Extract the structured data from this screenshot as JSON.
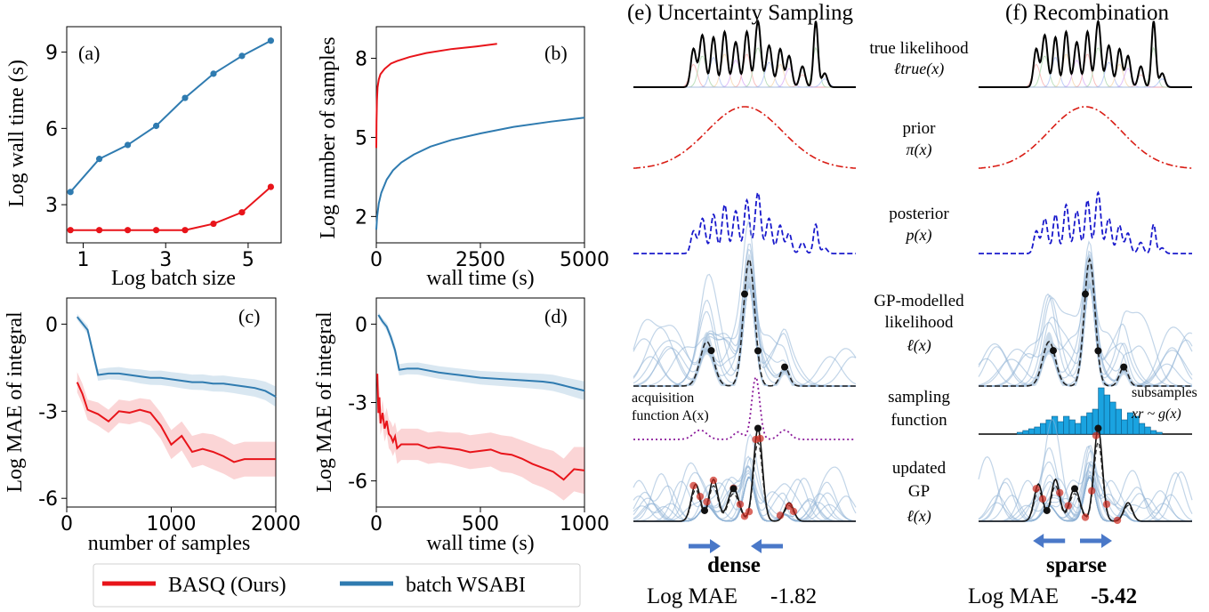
{
  "colors": {
    "basq": "#e8141a",
    "wsabi": "#2f7bb0",
    "prior": "#d91c14",
    "posterior": "#1a1acc",
    "acquisition": "#8b1a9a",
    "gp_light": "#8fb3d6",
    "gp_fill": "#b7cde3",
    "subsample": "#cc2a1e",
    "histogram": "#1aa3e0",
    "arrow": "#4a78c8"
  },
  "legend": {
    "basq": "BASQ (Ours)",
    "wsabi": "batch WSABI"
  },
  "chart_data": [
    {
      "id": "a",
      "type": "line",
      "panel_label": "(a)",
      "xlabel": "Log batch size",
      "ylabel": "Log wall time (s)",
      "xlim": [
        0.6,
        5.8
      ],
      "ylim": [
        1.5,
        10
      ],
      "xticks": [
        1,
        3,
        5
      ],
      "yticks": [
        3,
        6,
        9
      ],
      "x": [
        0.69,
        1.39,
        2.08,
        2.77,
        3.47,
        4.16,
        4.85,
        5.55
      ],
      "series": [
        {
          "name": "BASQ (Ours)",
          "values": [
            2.0,
            2.0,
            2.0,
            2.0,
            2.0,
            2.25,
            2.7,
            3.7
          ]
        },
        {
          "name": "batch WSABI",
          "values": [
            3.5,
            4.8,
            5.35,
            6.1,
            7.2,
            8.15,
            8.85,
            9.45
          ]
        }
      ]
    },
    {
      "id": "b",
      "type": "line",
      "panel_label": "(b)",
      "xlabel": "wall time (s)",
      "ylabel": "Log number of samples",
      "xlim": [
        0,
        5000
      ],
      "ylim": [
        1,
        9.2
      ],
      "xticks": [
        0,
        2500,
        5000
      ],
      "yticks": [
        2,
        5,
        8
      ],
      "series": [
        {
          "name": "BASQ (Ours)",
          "x": [
            0,
            5,
            15,
            30,
            60,
            100,
            200,
            350,
            500,
            800,
            1200,
            1800,
            2400,
            2900
          ],
          "values": [
            4.6,
            5.6,
            6.4,
            6.9,
            7.2,
            7.4,
            7.6,
            7.8,
            7.9,
            8.05,
            8.2,
            8.35,
            8.45,
            8.55
          ]
        },
        {
          "name": "batch WSABI",
          "x": [
            0,
            20,
            60,
            120,
            250,
            400,
            600,
            900,
            1300,
            1800,
            2500,
            3300,
            4200,
            5000
          ],
          "values": [
            1.5,
            2.0,
            2.5,
            2.9,
            3.4,
            3.75,
            4.05,
            4.35,
            4.65,
            4.9,
            5.15,
            5.4,
            5.6,
            5.75
          ]
        }
      ]
    },
    {
      "id": "c",
      "type": "line",
      "panel_label": "(c)",
      "xlabel": "number of samples",
      "ylabel": "Log MAE of integral",
      "xlim": [
        0,
        2000
      ],
      "ylim": [
        -6.3,
        0.9
      ],
      "xticks": [
        0,
        1000,
        2000
      ],
      "yticks": [
        0,
        -3,
        -6
      ],
      "series": [
        {
          "name": "BASQ (Ours)",
          "x": [
            100,
            150,
            200,
            300,
            400,
            500,
            600,
            700,
            800,
            900,
            1000,
            1100,
            1200,
            1300,
            1400,
            1500,
            1600,
            1700,
            1800,
            1900,
            2000
          ],
          "values": [
            -2.0,
            -2.4,
            -2.95,
            -3.1,
            -3.35,
            -3.0,
            -3.05,
            -2.95,
            -3.05,
            -3.5,
            -4.15,
            -3.85,
            -4.4,
            -4.3,
            -4.4,
            -4.55,
            -4.75,
            -4.65,
            -4.65,
            -4.65,
            -4.65
          ],
          "spread": [
            0.35,
            0.35,
            0.35,
            0.4,
            0.4,
            0.4,
            0.4,
            0.4,
            0.45,
            0.45,
            0.5,
            0.5,
            0.55,
            0.55,
            0.6,
            0.6,
            0.6,
            0.6,
            0.6,
            0.6,
            0.6
          ]
        },
        {
          "name": "batch WSABI",
          "x": [
            100,
            200,
            300,
            400,
            500,
            600,
            700,
            800,
            900,
            1000,
            1100,
            1200,
            1300,
            1400,
            1500,
            1600,
            1700,
            1800,
            1900,
            2000
          ],
          "values": [
            0.25,
            -0.2,
            -1.75,
            -1.7,
            -1.7,
            -1.75,
            -1.8,
            -1.85,
            -1.85,
            -1.9,
            -1.95,
            -2.0,
            -2.0,
            -2.05,
            -2.05,
            -2.1,
            -2.15,
            -2.2,
            -2.3,
            -2.5
          ],
          "spread": [
            0.1,
            0.15,
            0.2,
            0.2,
            0.22,
            0.22,
            0.24,
            0.24,
            0.25,
            0.25,
            0.26,
            0.26,
            0.27,
            0.27,
            0.28,
            0.28,
            0.29,
            0.3,
            0.32,
            0.35
          ]
        }
      ]
    },
    {
      "id": "d",
      "type": "line",
      "panel_label": "(d)",
      "xlabel": "wall time (s)",
      "ylabel": "Log MAE of integral",
      "xlim": [
        0,
        1000
      ],
      "ylim": [
        -7,
        1
      ],
      "xticks": [
        0,
        500,
        1000
      ],
      "yticks": [
        0,
        -3,
        -6
      ],
      "series": [
        {
          "name": "BASQ (Ours)",
          "x": [
            5,
            10,
            15,
            20,
            30,
            40,
            50,
            60,
            70,
            80,
            90,
            100,
            120,
            150,
            200,
            250,
            300,
            350,
            400,
            450,
            500,
            550,
            600,
            650,
            700,
            750,
            800,
            850,
            900,
            950,
            1000
          ],
          "values": [
            -1.9,
            -3.4,
            -2.8,
            -3.8,
            -3.4,
            -4.0,
            -3.7,
            -4.2,
            -4.3,
            -4.5,
            -4.3,
            -4.75,
            -4.6,
            -4.6,
            -4.6,
            -4.75,
            -4.7,
            -4.75,
            -4.8,
            -4.9,
            -4.85,
            -4.8,
            -4.95,
            -5.0,
            -5.15,
            -5.35,
            -5.5,
            -5.65,
            -5.95,
            -5.55,
            -5.6
          ],
          "spread": [
            0.4,
            0.4,
            0.45,
            0.45,
            0.5,
            0.5,
            0.5,
            0.55,
            0.55,
            0.55,
            0.55,
            0.6,
            0.6,
            0.6,
            0.6,
            0.6,
            0.6,
            0.6,
            0.65,
            0.65,
            0.65,
            0.65,
            0.7,
            0.7,
            0.7,
            0.75,
            0.75,
            0.8,
            0.8,
            0.85,
            0.9
          ]
        },
        {
          "name": "batch WSABI",
          "x": [
            10,
            30,
            50,
            70,
            90,
            110,
            150,
            200,
            300,
            400,
            500,
            600,
            700,
            800,
            850,
            900,
            950,
            1000
          ],
          "values": [
            0.35,
            0.1,
            -0.1,
            -0.5,
            -1.0,
            -1.75,
            -1.7,
            -1.7,
            -1.85,
            -1.95,
            -2.05,
            -2.1,
            -2.15,
            -2.2,
            -2.25,
            -2.35,
            -2.45,
            -2.55
          ],
          "spread": [
            0.1,
            0.12,
            0.15,
            0.18,
            0.2,
            0.22,
            0.22,
            0.23,
            0.24,
            0.25,
            0.26,
            0.27,
            0.28,
            0.3,
            0.31,
            0.32,
            0.34,
            0.36
          ]
        }
      ]
    },
    {
      "id": "e",
      "type": "line",
      "panel_label": "(e) Uncertainty Sampling",
      "rows": [
        "true likelihood",
        "prior",
        "posterior",
        "GP-modelled likelihood",
        "sampling function",
        "updated GP"
      ],
      "annotation": "acquisition function A(x)",
      "summary_label": "dense",
      "metric_label": "Log MAE",
      "metric_value": "-1.82"
    },
    {
      "id": "f",
      "type": "bar",
      "panel_label": "(f) Recombination",
      "rows": [
        "true likelihood",
        "prior",
        "posterior",
        "GP-modelled likelihood",
        "sampling function",
        "updated GP"
      ],
      "annotation": "subsamples x_r ~ g(x)",
      "summary_label": "sparse",
      "metric_label": "Log MAE",
      "metric_value": "-5.42",
      "histogram_values": [
        0.5,
        1,
        1.5,
        2,
        3,
        4,
        5,
        3.5,
        5,
        4,
        3,
        5,
        6,
        7,
        13,
        11,
        9,
        7,
        4,
        6,
        5,
        3,
        2,
        1,
        0.5
      ]
    }
  ],
  "row_labels": {
    "true_likelihood": {
      "line1": "true likelihood",
      "line2": "ℓtrue(x)"
    },
    "prior": {
      "line1": "prior",
      "line2": "π(x)"
    },
    "posterior": {
      "line1": "posterior",
      "line2": "p(x)"
    },
    "gp": {
      "line1": "GP-modelled",
      "line2": "likelihood",
      "line3": "ℓ(x)"
    },
    "sampling": {
      "line1": "sampling",
      "line2": "function"
    },
    "updated": {
      "line1": "updated",
      "line2": "GP",
      "line3": "ℓ(x)"
    }
  },
  "annotations": {
    "acq_line1": "acquisition",
    "acq_line2": "function A(x)",
    "sub_line1": "subsamples",
    "sub_line2": "xr ~ g(x)"
  }
}
